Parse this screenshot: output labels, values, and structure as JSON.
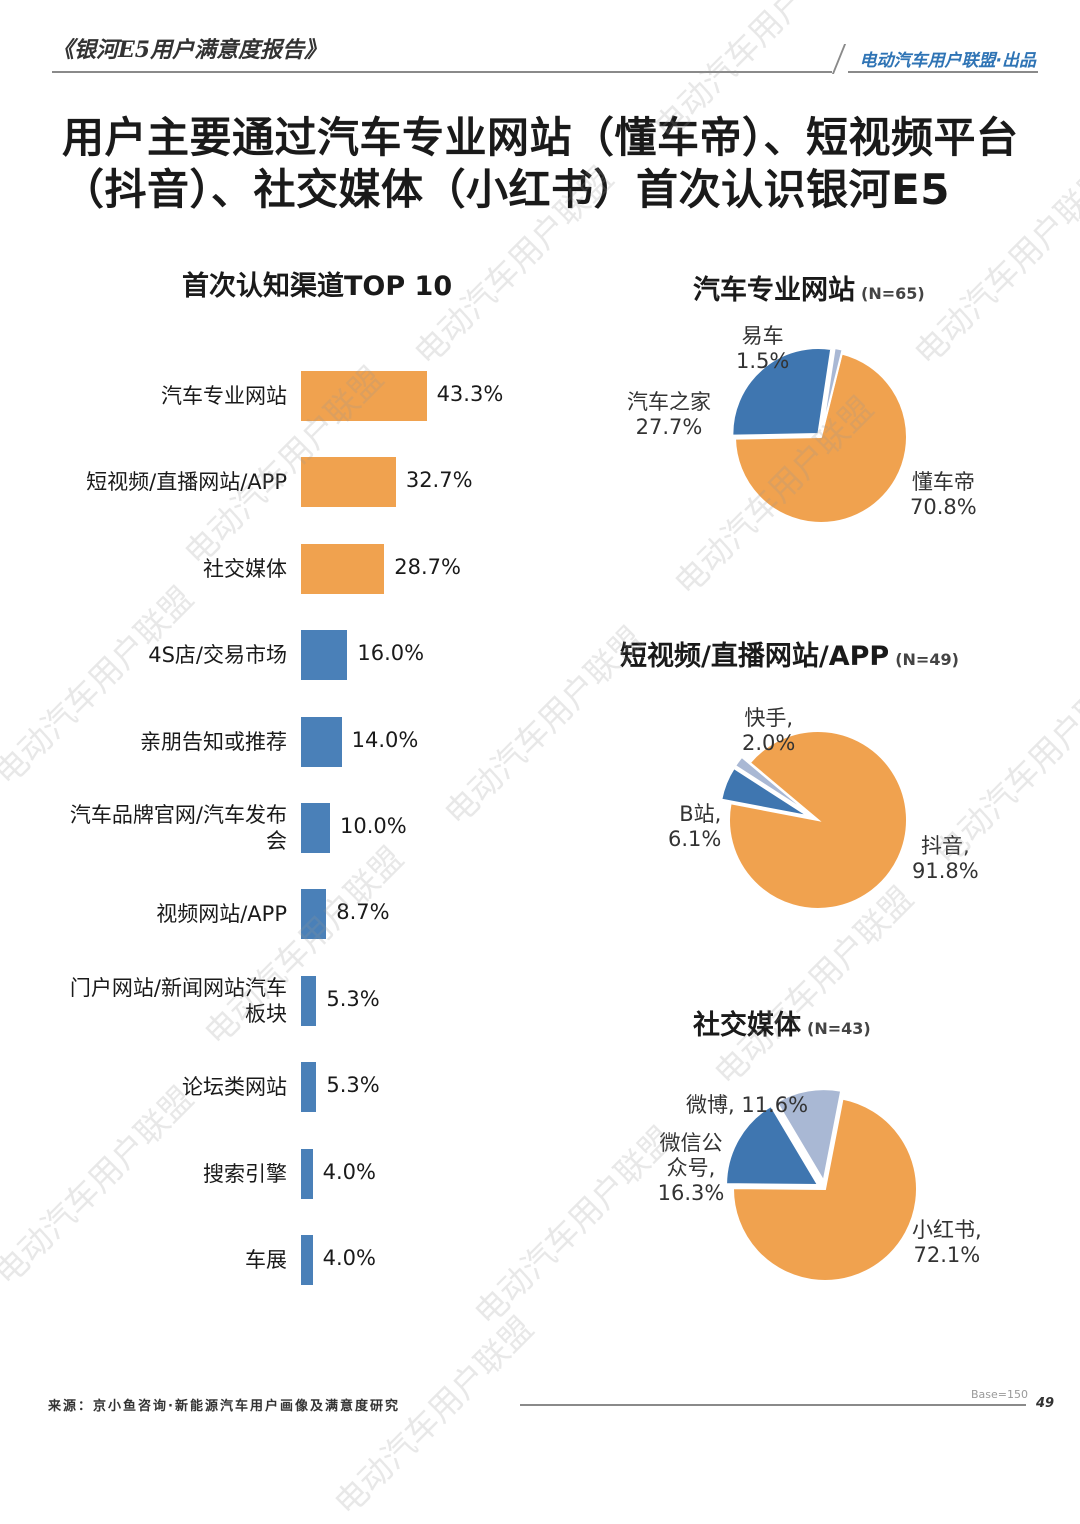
{
  "header": {
    "report_title": "《银河E5用户满意度报告》",
    "publisher": "电动汽车用户联盟·出品"
  },
  "headline": "用户主要通过汽车专业网站（懂车帝）、短视频平台（抖音）、社交媒体（小红书）首次认识银河E5",
  "chart_data": [
    {
      "type": "bar",
      "title": "首次认知渠道TOP 10",
      "categories": [
        "汽车专业网站",
        "短视频/直播网站/APP",
        "社交媒体",
        "4S店/交易市场",
        "亲朋告知或推荐",
        "汽车品牌官网/汽车发布会",
        "视频网站/APP",
        "门户网站/新闻网站汽车板块",
        "论坛类网站",
        "搜索引擎",
        "车展"
      ],
      "values": [
        43.3,
        32.7,
        28.7,
        16.0,
        14.0,
        10.0,
        8.7,
        5.3,
        5.3,
        4.0,
        4.0
      ],
      "value_labels": [
        "43.3%",
        "32.7%",
        "28.7%",
        "16.0%",
        "14.0%",
        "10.0%",
        "8.7%",
        "5.3%",
        "5.3%",
        "4.0%",
        "4.0%"
      ],
      "highlight_count": 3,
      "colors": {
        "highlight": "#f0a24f",
        "normal": "#4a80b8"
      }
    },
    {
      "type": "pie",
      "title": "汽车专业网站",
      "n_label": "(N=65)",
      "slices": [
        {
          "label": "懂车帝",
          "value": 70.8,
          "value_label": "70.8%",
          "color": "#f0a24f"
        },
        {
          "label": "汽车之家",
          "value": 27.7,
          "value_label": "27.7%",
          "color": "#3f76b0"
        },
        {
          "label": "易车",
          "value": 1.5,
          "value_label": "1.5%",
          "color": "#a9b8d4"
        }
      ]
    },
    {
      "type": "pie",
      "title": "短视频/直播网站/APP",
      "n_label": "(N=49)",
      "slices": [
        {
          "label": "抖音,",
          "value": 91.8,
          "value_label": "91.8%",
          "color": "#f0a24f"
        },
        {
          "label": "B站,",
          "value": 6.1,
          "value_label": "6.1%",
          "color": "#3f76b0"
        },
        {
          "label": "快手,",
          "value": 2.0,
          "value_label": "2.0%",
          "color": "#a9b8d4"
        }
      ]
    },
    {
      "type": "pie",
      "title": "社交媒体",
      "n_label": "(N=43)",
      "slices": [
        {
          "label": "小红书,",
          "value": 72.1,
          "value_label": "72.1%",
          "color": "#f0a24f"
        },
        {
          "label": "微信公众号,",
          "value": 16.3,
          "value_label": "16.3%",
          "color": "#3f76b0"
        },
        {
          "label": "微博,",
          "value": 11.6,
          "value_label": "11.6%",
          "color": "#a9b8d4"
        }
      ]
    }
  ],
  "footer": {
    "source": "来源：京小鱼咨询·新能源汽车用户画像及满意度研究",
    "base": "Base=150",
    "page_number": "49"
  },
  "watermark_text": "电动汽车用户联盟"
}
